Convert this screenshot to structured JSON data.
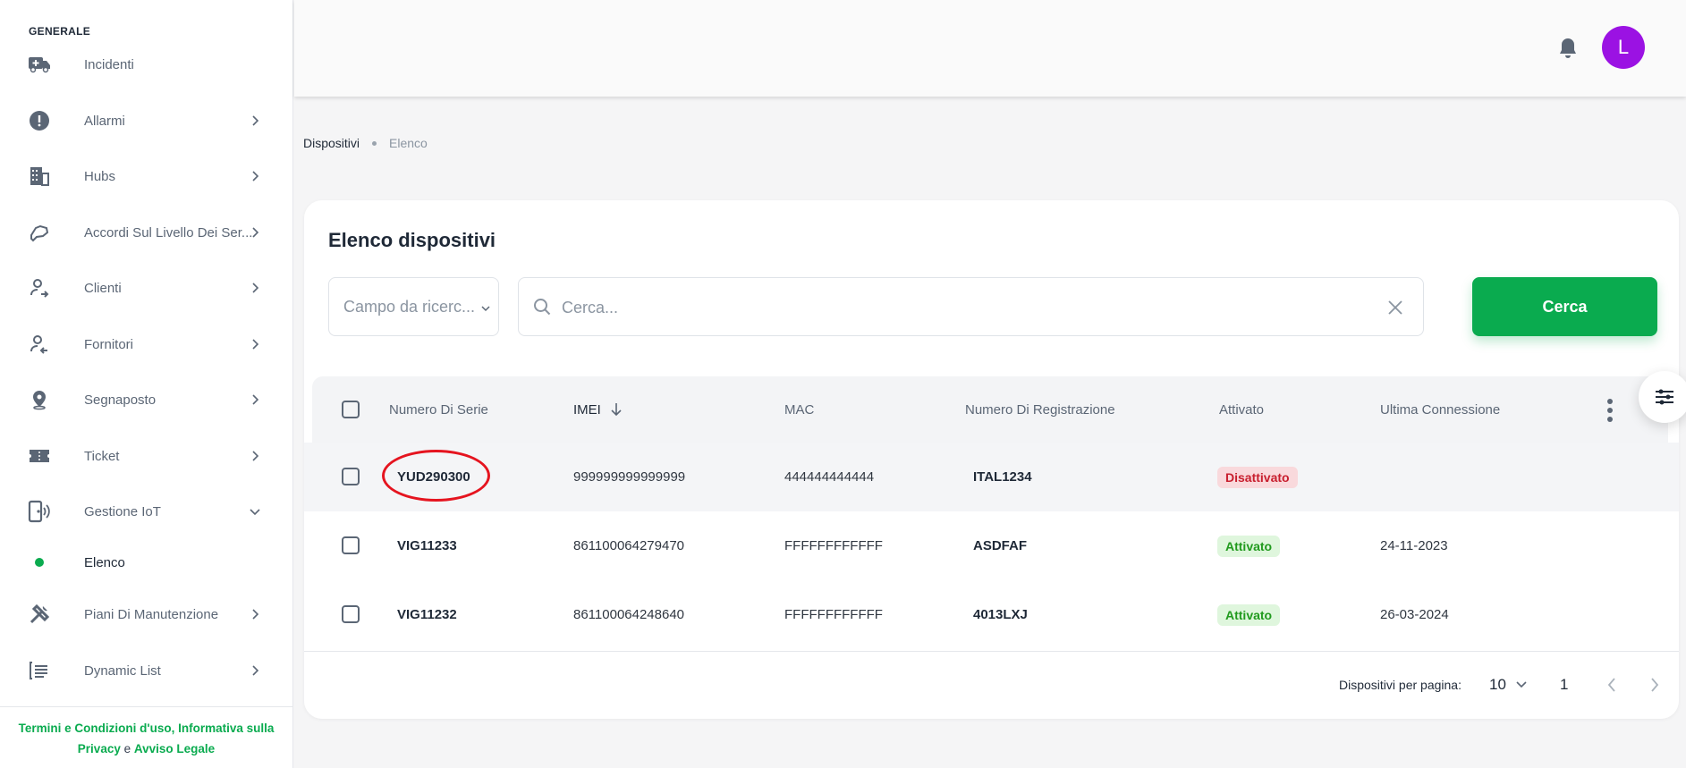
{
  "sidebar": {
    "section": "GENERALE",
    "items": [
      {
        "label": "Incidenti",
        "icon": "ambulance-icon"
      },
      {
        "label": "Allarmi",
        "icon": "alert-circle-icon"
      },
      {
        "label": "Hubs",
        "icon": "building-icon"
      },
      {
        "label": "Accordi Sul Livello Dei Ser...",
        "icon": "handshake-icon"
      },
      {
        "label": "Clienti",
        "icon": "user-arrow-icon"
      },
      {
        "label": "Fornitori",
        "icon": "user-arrow-left-icon"
      },
      {
        "label": "Segnaposto",
        "icon": "map-pin-icon"
      },
      {
        "label": "Ticket",
        "icon": "ticket-icon"
      },
      {
        "label": "Gestione IoT",
        "icon": "iot-device-icon"
      },
      {
        "label": "Elenco"
      },
      {
        "label": "Piani Di Manutenzione",
        "icon": "tools-icon"
      },
      {
        "label": "Dynamic List",
        "icon": "list-icon"
      }
    ],
    "footer": {
      "link1": "Termini e Condizioni d'uso, Informativa sulla Privacy",
      "conj": "e",
      "link2": "Avviso Legale"
    }
  },
  "topbar": {
    "avatar_letter": "L",
    "avatar_color": "#9b12e3"
  },
  "breadcrumb": [
    "Dispositivi",
    "Elenco"
  ],
  "main": {
    "title": "Elenco dispositivi",
    "search_field_placeholder": "Campo da ricerc...",
    "search_placeholder": "Cerca...",
    "search_button": "Cerca",
    "columns": [
      "Numero Di Serie",
      "IMEI",
      "MAC",
      "Numero Di Registrazione",
      "Attivato",
      "Ultima Connessione"
    ],
    "rows": [
      {
        "serial": "YUD290300",
        "imei": "999999999999999",
        "mac": "444444444444",
        "reg": "ITAL1234",
        "status": "Disattivato",
        "last": ""
      },
      {
        "serial": "VIG11233",
        "imei": "861100064279470",
        "mac": "FFFFFFFFFFFF",
        "reg": "ASDFAF",
        "status": "Attivato",
        "last": "24-11-2023"
      },
      {
        "serial": "VIG11232",
        "imei": "861100064248640",
        "mac": "FFFFFFFFFFFF",
        "reg": "4013LXJ",
        "status": "Attivato",
        "last": "26-03-2024"
      }
    ],
    "pagination": {
      "label": "Dispositivi per pagina:",
      "per_page": "10",
      "page": "1"
    }
  },
  "colors": {
    "accent": "#0aab4f",
    "danger": "#c81e2e",
    "annotation": "#e5141f"
  }
}
